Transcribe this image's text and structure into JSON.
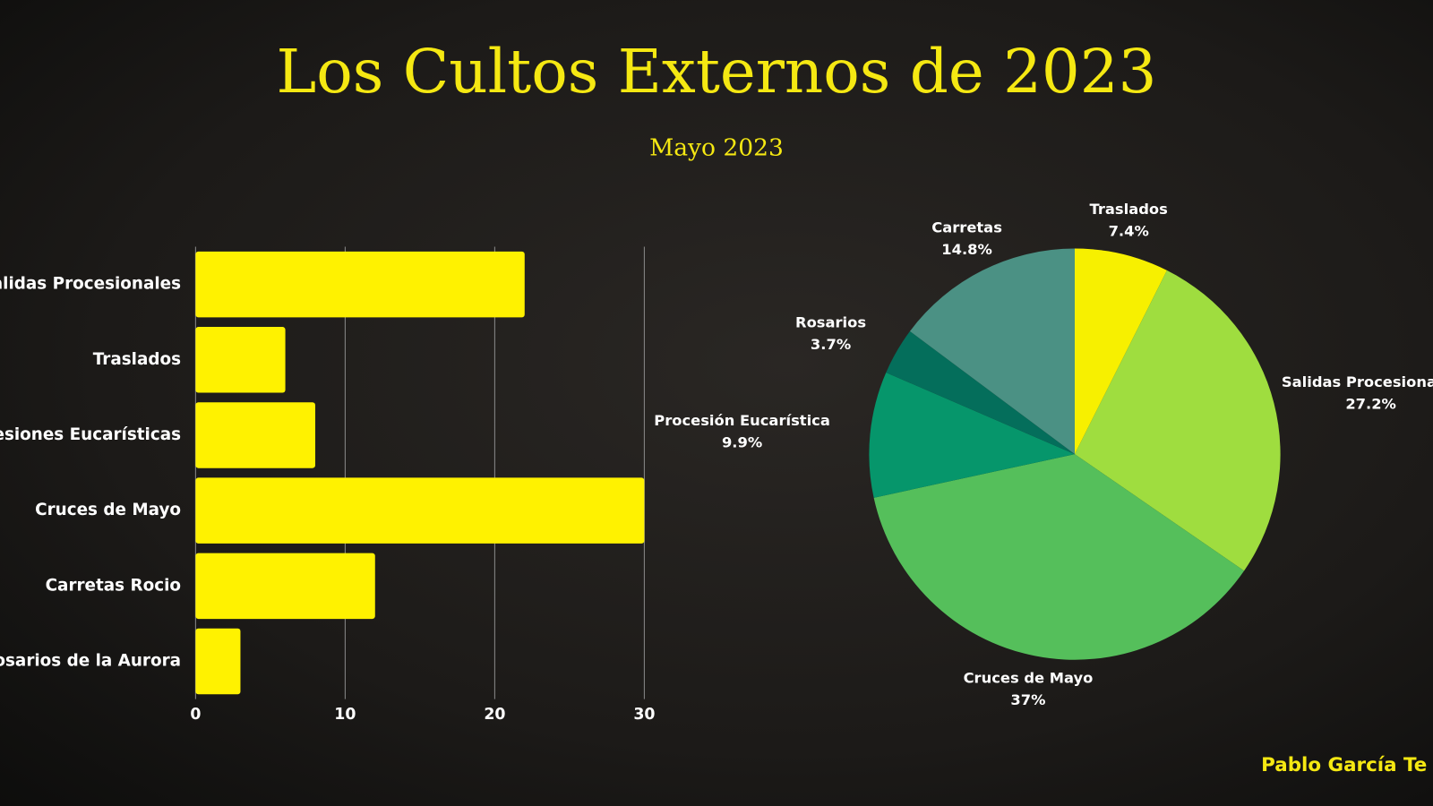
{
  "title": "Los Cultos Externos de 2023",
  "subtitle": "Mayo 2023",
  "author": "Pablo García Te",
  "chart_data": [
    {
      "type": "bar",
      "orientation": "horizontal",
      "categories": [
        "Salidas Procesionales",
        "Traslados",
        "Procesiones Eucarísticas",
        "Cruces de Mayo",
        "Carretas Rocio",
        "Rosarios de la Aurora"
      ],
      "values": [
        22,
        6,
        8,
        30,
        12,
        3
      ],
      "color": "#fff200",
      "xlim": [
        0,
        30
      ],
      "xticks": [
        0,
        10,
        20,
        30
      ],
      "grid": true
    },
    {
      "type": "pie",
      "categories": [
        "Traslados",
        "Salidas Procesionales",
        "Cruces de Mayo",
        "Procesión Eucarística",
        "Rosarios",
        "Carretas"
      ],
      "values": [
        7.4,
        27.2,
        37,
        9.9,
        3.7,
        14.8
      ],
      "value_labels": [
        "7.4%",
        "27.2%",
        "37%",
        "9.9%",
        "3.7%",
        "14.8%"
      ],
      "colors": [
        "#f7f000",
        "#9fdd3f",
        "#55bf5b",
        "#06966b",
        "#046e5b",
        "#4b9184"
      ]
    }
  ]
}
